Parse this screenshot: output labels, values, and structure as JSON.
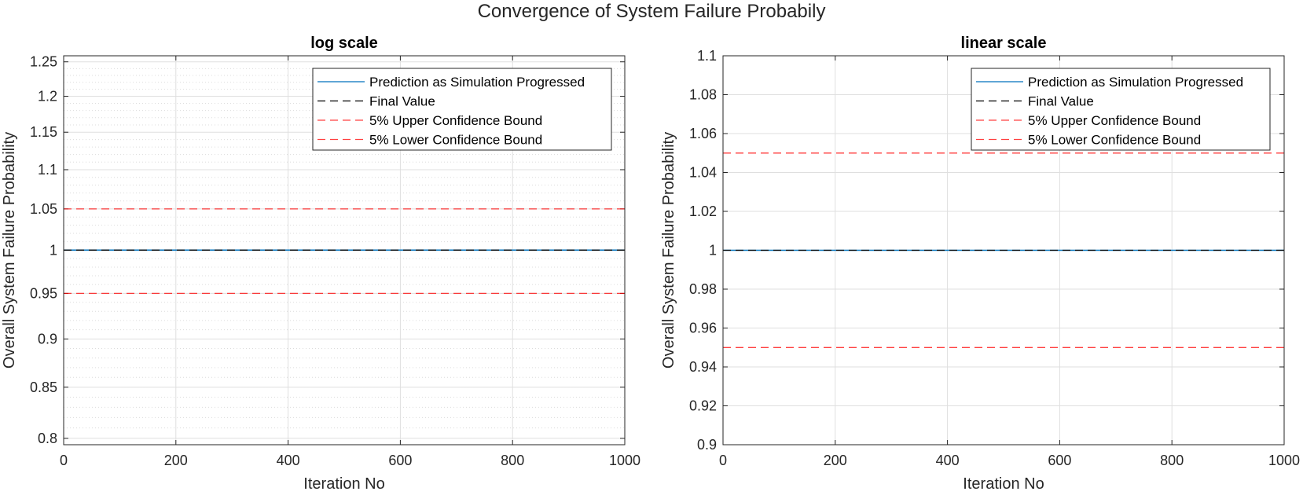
{
  "figure": {
    "suptitle": "Convergence of System Failure Probabily"
  },
  "legend_entries": [
    {
      "label": "Prediction as Simulation Progressed",
      "color": "#0072BD",
      "dash": "solid"
    },
    {
      "label": "Final Value",
      "color": "#000000",
      "dash": "dashed"
    },
    {
      "label": "5% Upper Confidence Bound",
      "color": "#FF0000",
      "dash": "dashed"
    },
    {
      "label": "5% Lower Confidence Bound",
      "color": "#FF0000",
      "dash": "dashed"
    }
  ],
  "chart_data": [
    {
      "type": "line",
      "title": "log scale",
      "xlabel": "Iteration No",
      "ylabel": "Overall System Failure Probability",
      "yscale": "log",
      "xlim": [
        0,
        1000
      ],
      "ylim": [
        0.794,
        1.259
      ],
      "xticks": [
        "0",
        "200",
        "400",
        "600",
        "800",
        "1000"
      ],
      "yticks": [
        "0.8",
        "0.85",
        "0.9",
        "0.95",
        "1",
        "1.05",
        "1.1",
        "1.15",
        "1.2",
        "1.25"
      ],
      "grid": true,
      "minor_grid": true,
      "legend_position": "top-right",
      "series": [
        {
          "name": "Prediction as Simulation Progressed",
          "x": [
            0,
            1000
          ],
          "y": [
            1,
            1
          ],
          "color": "#0072BD",
          "dash": "solid"
        },
        {
          "name": "Final Value",
          "x": [
            0,
            1000
          ],
          "y": [
            1,
            1
          ],
          "color": "#000000",
          "dash": "dashed"
        },
        {
          "name": "5% Upper Confidence Bound",
          "x": [
            0,
            1000
          ],
          "y": [
            1.05,
            1.05
          ],
          "color": "#FF0000",
          "dash": "dashed"
        },
        {
          "name": "5% Lower Confidence Bound",
          "x": [
            0,
            1000
          ],
          "y": [
            0.95,
            0.95
          ],
          "color": "#FF0000",
          "dash": "dashed"
        }
      ]
    },
    {
      "type": "line",
      "title": "linear scale",
      "xlabel": "Iteration No",
      "ylabel": "Overall System Failure Probability",
      "yscale": "linear",
      "xlim": [
        0,
        1000
      ],
      "ylim": [
        0.9,
        1.1
      ],
      "xticks": [
        "0",
        "200",
        "400",
        "600",
        "800",
        "1000"
      ],
      "yticks": [
        "0.9",
        "0.92",
        "0.94",
        "0.96",
        "0.98",
        "1",
        "1.02",
        "1.04",
        "1.06",
        "1.08",
        "1.1"
      ],
      "grid": true,
      "minor_grid": false,
      "legend_position": "top-right",
      "series": [
        {
          "name": "Prediction as Simulation Progressed",
          "x": [
            0,
            1000
          ],
          "y": [
            1,
            1
          ],
          "color": "#0072BD",
          "dash": "solid"
        },
        {
          "name": "Final Value",
          "x": [
            0,
            1000
          ],
          "y": [
            1,
            1
          ],
          "color": "#000000",
          "dash": "dashed"
        },
        {
          "name": "5% Upper Confidence Bound",
          "x": [
            0,
            1000
          ],
          "y": [
            1.05,
            1.05
          ],
          "color": "#FF0000",
          "dash": "dashed"
        },
        {
          "name": "5% Lower Confidence Bound",
          "x": [
            0,
            1000
          ],
          "y": [
            0.95,
            0.95
          ],
          "color": "#FF0000",
          "dash": "dashed"
        }
      ]
    }
  ]
}
